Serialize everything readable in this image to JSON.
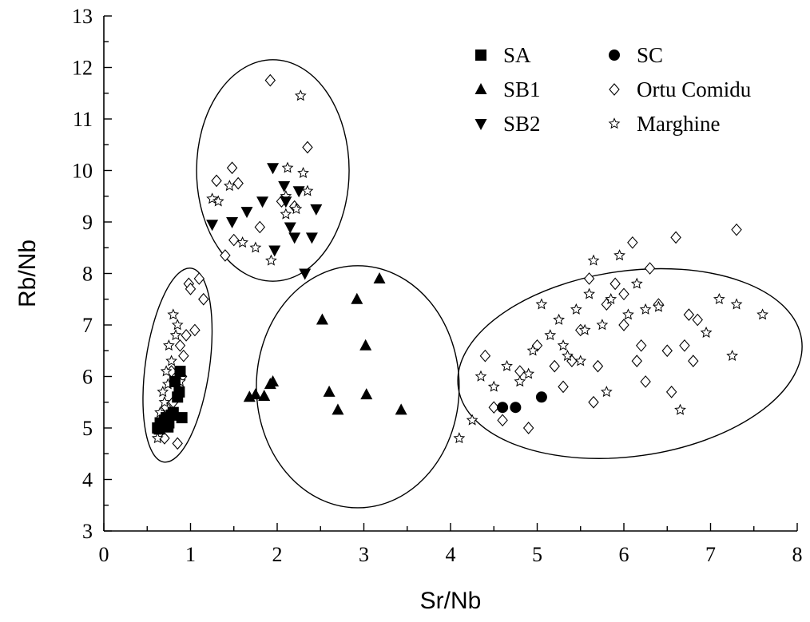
{
  "chart_data": {
    "type": "scatter",
    "title": "",
    "xlabel": "Sr/Nb",
    "ylabel": "Rb/Nb",
    "xlim": [
      0,
      8
    ],
    "ylim": [
      3,
      13
    ],
    "xticks": [
      "0",
      "1",
      "2",
      "3",
      "4",
      "5",
      "6",
      "7",
      "8"
    ],
    "yticks": [
      "3",
      "4",
      "5",
      "6",
      "7",
      "8",
      "9",
      "10",
      "11",
      "12",
      "13"
    ],
    "grid": false,
    "legend_position": "top-right",
    "series": [
      {
        "name": "SA",
        "marker": "filled-square",
        "points": [
          [
            0.62,
            5.0
          ],
          [
            0.65,
            5.1
          ],
          [
            0.68,
            5.05
          ],
          [
            0.7,
            5.15
          ],
          [
            0.72,
            5.2
          ],
          [
            0.75,
            5.1
          ],
          [
            0.78,
            5.25
          ],
          [
            0.8,
            5.3
          ],
          [
            0.85,
            5.6
          ],
          [
            0.87,
            5.7
          ],
          [
            0.9,
            5.2
          ],
          [
            0.88,
            6.1
          ],
          [
            0.82,
            5.9
          ],
          [
            0.64,
            4.98
          ],
          [
            0.74,
            5.02
          ]
        ]
      },
      {
        "name": "SB1",
        "marker": "filled-triangle-up",
        "points": [
          [
            1.68,
            5.6
          ],
          [
            1.75,
            5.65
          ],
          [
            1.85,
            5.62
          ],
          [
            1.92,
            5.85
          ],
          [
            1.95,
            5.9
          ],
          [
            2.52,
            7.1
          ],
          [
            2.6,
            5.7
          ],
          [
            2.7,
            5.35
          ],
          [
            2.92,
            7.5
          ],
          [
            3.02,
            6.6
          ],
          [
            3.03,
            5.65
          ],
          [
            3.18,
            7.9
          ],
          [
            3.43,
            5.35
          ]
        ]
      },
      {
        "name": "SB2",
        "marker": "filled-triangle-down",
        "points": [
          [
            1.25,
            8.95
          ],
          [
            1.48,
            9.0
          ],
          [
            1.65,
            9.2
          ],
          [
            1.83,
            9.4
          ],
          [
            1.95,
            10.05
          ],
          [
            1.97,
            8.45
          ],
          [
            2.1,
            9.4
          ],
          [
            2.15,
            8.9
          ],
          [
            2.2,
            8.7
          ],
          [
            2.25,
            9.6
          ],
          [
            2.32,
            8.0
          ],
          [
            2.4,
            8.7
          ],
          [
            2.45,
            9.25
          ],
          [
            2.08,
            9.7
          ]
        ]
      },
      {
        "name": "SC",
        "marker": "filled-circle",
        "points": [
          [
            4.6,
            5.4
          ],
          [
            4.75,
            5.4
          ],
          [
            5.05,
            5.6
          ]
        ]
      },
      {
        "name": "Ortu Comidu",
        "marker": "open-diamond",
        "points": [
          [
            0.7,
            4.8
          ],
          [
            0.75,
            5.2
          ],
          [
            0.8,
            5.5
          ],
          [
            0.85,
            4.7
          ],
          [
            0.9,
            6.0
          ],
          [
            0.92,
            6.4
          ],
          [
            0.95,
            6.8
          ],
          [
            0.98,
            7.8
          ],
          [
            1.0,
            7.7
          ],
          [
            1.05,
            6.9
          ],
          [
            1.1,
            7.9
          ],
          [
            1.15,
            7.5
          ],
          [
            0.78,
            6.1
          ],
          [
            0.72,
            5.4
          ],
          [
            0.88,
            6.6
          ],
          [
            1.3,
            9.8
          ],
          [
            1.4,
            8.35
          ],
          [
            1.48,
            10.05
          ],
          [
            1.55,
            9.75
          ],
          [
            1.5,
            8.65
          ],
          [
            1.8,
            8.9
          ],
          [
            1.92,
            11.75
          ],
          [
            2.05,
            9.4
          ],
          [
            2.2,
            9.3
          ],
          [
            2.35,
            10.45
          ],
          [
            4.4,
            6.4
          ],
          [
            4.5,
            5.4
          ],
          [
            4.6,
            5.15
          ],
          [
            4.8,
            6.1
          ],
          [
            4.9,
            5.0
          ],
          [
            5.0,
            6.6
          ],
          [
            5.2,
            6.2
          ],
          [
            5.3,
            5.8
          ],
          [
            5.5,
            6.9
          ],
          [
            5.6,
            7.9
          ],
          [
            5.7,
            6.2
          ],
          [
            5.8,
            7.4
          ],
          [
            5.9,
            7.8
          ],
          [
            6.0,
            7.0
          ],
          [
            6.1,
            8.6
          ],
          [
            6.2,
            6.6
          ],
          [
            6.3,
            8.1
          ],
          [
            6.4,
            7.4
          ],
          [
            6.5,
            6.5
          ],
          [
            6.6,
            8.7
          ],
          [
            6.7,
            6.6
          ],
          [
            6.75,
            7.2
          ],
          [
            6.8,
            6.3
          ],
          [
            6.85,
            7.1
          ],
          [
            7.3,
            8.85
          ],
          [
            6.0,
            7.6
          ],
          [
            5.4,
            6.3
          ],
          [
            5.65,
            5.5
          ],
          [
            6.25,
            5.9
          ],
          [
            6.55,
            5.7
          ],
          [
            6.15,
            6.3
          ]
        ]
      },
      {
        "name": "Marghine",
        "marker": "open-star",
        "points": [
          [
            0.62,
            4.8
          ],
          [
            0.65,
            5.3
          ],
          [
            0.68,
            5.7
          ],
          [
            0.72,
            6.1
          ],
          [
            0.75,
            6.6
          ],
          [
            0.8,
            7.2
          ],
          [
            0.85,
            7.0
          ],
          [
            0.7,
            5.5
          ],
          [
            0.78,
            6.3
          ],
          [
            0.83,
            6.8
          ],
          [
            0.88,
            5.9
          ],
          [
            0.66,
            5.0
          ],
          [
            0.74,
            5.85
          ],
          [
            1.25,
            9.45
          ],
          [
            1.32,
            9.4
          ],
          [
            1.45,
            9.7
          ],
          [
            1.6,
            8.6
          ],
          [
            1.75,
            8.5
          ],
          [
            1.93,
            8.25
          ],
          [
            2.1,
            9.15
          ],
          [
            2.12,
            10.05
          ],
          [
            2.22,
            9.25
          ],
          [
            2.27,
            11.45
          ],
          [
            2.3,
            9.95
          ],
          [
            2.35,
            9.6
          ],
          [
            2.1,
            9.5
          ],
          [
            4.1,
            4.8
          ],
          [
            4.25,
            5.15
          ],
          [
            4.35,
            6.0
          ],
          [
            4.5,
            5.8
          ],
          [
            4.65,
            6.2
          ],
          [
            4.8,
            5.9
          ],
          [
            4.95,
            6.5
          ],
          [
            5.05,
            7.4
          ],
          [
            5.15,
            6.8
          ],
          [
            5.25,
            7.1
          ],
          [
            5.35,
            6.4
          ],
          [
            5.45,
            7.3
          ],
          [
            5.55,
            6.9
          ],
          [
            5.6,
            7.6
          ],
          [
            5.65,
            8.25
          ],
          [
            5.75,
            7.0
          ],
          [
            5.85,
            7.5
          ],
          [
            5.95,
            8.35
          ],
          [
            6.05,
            7.2
          ],
          [
            6.15,
            7.8
          ],
          [
            6.25,
            7.3
          ],
          [
            6.4,
            7.35
          ],
          [
            7.1,
            7.5
          ],
          [
            7.3,
            7.4
          ],
          [
            7.6,
            7.2
          ],
          [
            6.95,
            6.85
          ],
          [
            7.25,
            6.4
          ],
          [
            6.65,
            5.35
          ],
          [
            5.8,
            5.7
          ],
          [
            5.5,
            6.3
          ],
          [
            4.9,
            6.05
          ],
          [
            5.3,
            6.6
          ]
        ]
      }
    ],
    "ellipses": [
      {
        "cx": 0.85,
        "cy": 6.22,
        "rx": 0.37,
        "ry": 1.9,
        "angle_deg": 8
      },
      {
        "cx": 1.95,
        "cy": 10.0,
        "rx": 0.88,
        "ry": 2.15,
        "angle_deg": 0
      },
      {
        "cx": 2.93,
        "cy": 5.8,
        "rx": 1.17,
        "ry": 2.35,
        "angle_deg": 0
      },
      {
        "cx": 6.07,
        "cy": 6.25,
        "rx": 2.0,
        "ry": 1.8,
        "angle_deg": -8
      }
    ]
  }
}
